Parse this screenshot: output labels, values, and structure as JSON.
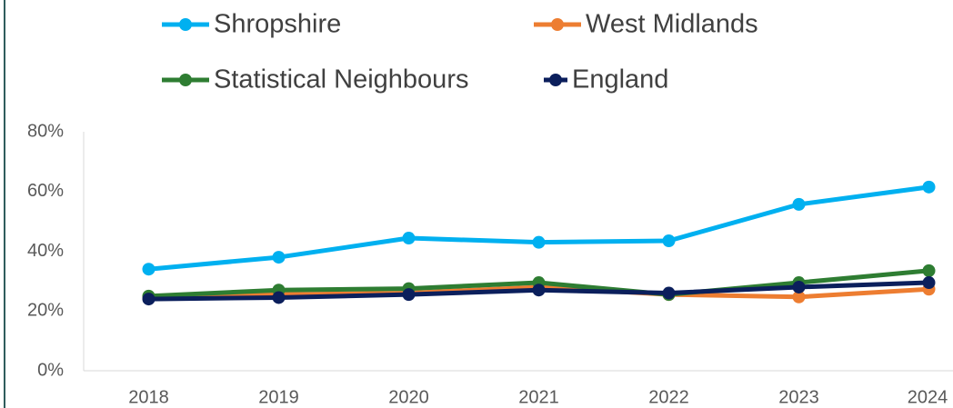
{
  "chart_data": {
    "type": "line",
    "categories": [
      "2018",
      "2019",
      "2020",
      "2021",
      "2022",
      "2023",
      "2024"
    ],
    "series": [
      {
        "name": "Shropshire",
        "color": "#00b0f0",
        "values": [
          34,
          38,
          44.4,
          43,
          43.5,
          55.7,
          61.5
        ]
      },
      {
        "name": "West Midlands",
        "color": "#ed7d31",
        "values": [
          24.5,
          25.5,
          26,
          28,
          25.5,
          24.7,
          27.3
        ]
      },
      {
        "name": "Statistical Neighbours",
        "color": "#2e7d32",
        "values": [
          25,
          27,
          27.5,
          29.5,
          25.5,
          29.5,
          33.5
        ]
      },
      {
        "name": "England",
        "color": "#0b1f5c",
        "values": [
          24,
          24.5,
          25.5,
          27,
          26,
          28,
          29.5
        ]
      }
    ],
    "ylim": [
      0,
      80
    ],
    "yticks": [
      {
        "value": 0,
        "label": "0%"
      },
      {
        "value": 20,
        "label": "20%"
      },
      {
        "value": 40,
        "label": "40%"
      },
      {
        "value": 60,
        "label": "60%"
      },
      {
        "value": 80,
        "label": "80%"
      }
    ],
    "legend": "top"
  }
}
